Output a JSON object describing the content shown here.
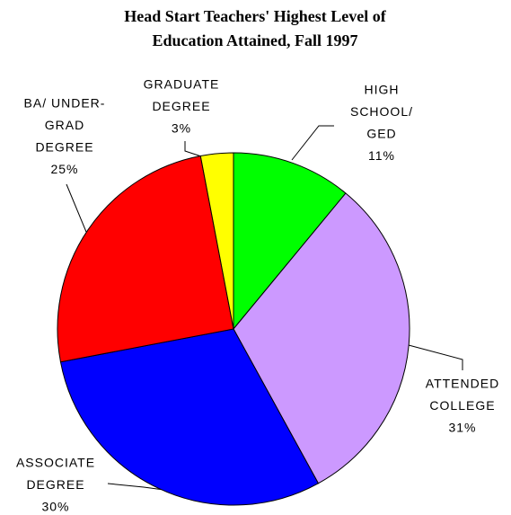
{
  "chart_data": {
    "type": "pie",
    "title": [
      "Head Start Teachers' Highest Level of",
      "Education Attained, Fall 1997"
    ],
    "categories": [
      [
        "HIGH",
        "SCHOOL/",
        "GED"
      ],
      [
        "ATTENDED",
        "COLLEGE"
      ],
      [
        "ASSOCIATE",
        "DEGREE"
      ],
      [
        "BA/ UNDER-",
        "GRAD",
        "DEGREE"
      ],
      [
        "GRADUATE",
        "DEGREE"
      ]
    ],
    "values": [
      11,
      31,
      30,
      25,
      3
    ],
    "value_labels": [
      "11%",
      "31%",
      "30%",
      "25%",
      "3%"
    ],
    "colors": [
      "#00ff00",
      "#cc99ff",
      "#0000ff",
      "#ff0000",
      "#ffff00"
    ]
  }
}
